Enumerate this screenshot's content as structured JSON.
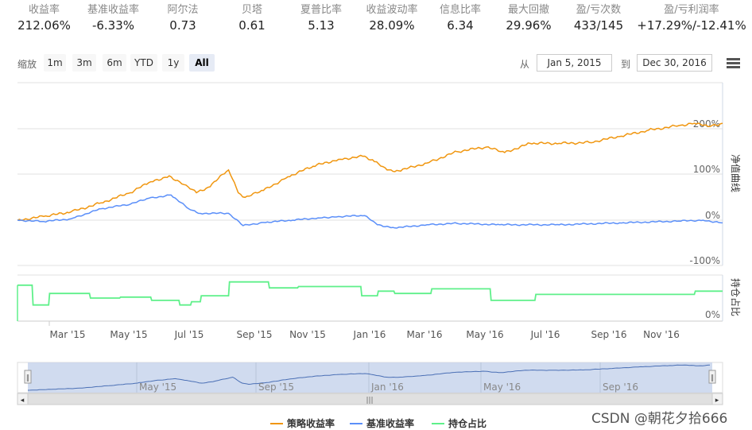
{
  "stats": [
    {
      "label": "收益率",
      "value": "212.06%"
    },
    {
      "label": "基准收益率",
      "value": "-6.33%"
    },
    {
      "label": "阿尔法",
      "value": "0.73"
    },
    {
      "label": "贝塔",
      "value": "0.61"
    },
    {
      "label": "夏普比率",
      "value": "5.13"
    },
    {
      "label": "收益波动率",
      "value": "28.09%"
    },
    {
      "label": "信息比率",
      "value": "6.34"
    },
    {
      "label": "最大回撤",
      "value": "29.96%"
    },
    {
      "label": "盈/亏次数",
      "value": "433/145"
    },
    {
      "label": "盈/亏利润率",
      "value": "+17.29%/-12.41%"
    }
  ],
  "range_selector": {
    "zoom_label": "缩放",
    "buttons": [
      "1m",
      "3m",
      "6m",
      "YTD",
      "1y",
      "All"
    ],
    "active": "All",
    "from_label": "从",
    "from_value": "Jan 5, 2015",
    "to_label": "到",
    "to_value": "Dec 30, 2016"
  },
  "chart_data": [
    {
      "type": "line",
      "ylabel": "净值曲线",
      "yticks": [
        "200%",
        "100%",
        "0%",
        "-100%"
      ],
      "ylim": [
        -100,
        250
      ],
      "x_range": [
        "2015-01-05",
        "2016-12-30"
      ],
      "series": [
        {
          "name": "策略收益率",
          "color": "#f0960f",
          "x": [
            "2015-01-05",
            "2015-02-01",
            "2015-03-01",
            "2015-04-01",
            "2015-05-01",
            "2015-05-20",
            "2015-06-10",
            "2015-06-25",
            "2015-07-08",
            "2015-07-20",
            "2015-08-10",
            "2015-08-20",
            "2015-08-27",
            "2015-09-15",
            "2015-10-10",
            "2015-11-05",
            "2015-12-01",
            "2015-12-28",
            "2016-01-07",
            "2016-01-20",
            "2016-02-01",
            "2016-03-01",
            "2016-04-01",
            "2016-05-01",
            "2016-05-20",
            "2016-06-15",
            "2016-07-15",
            "2016-08-15",
            "2016-09-15",
            "2016-10-15",
            "2016-11-15",
            "2016-12-01",
            "2016-12-15",
            "2016-12-30"
          ],
          "values": [
            0,
            8,
            18,
            38,
            60,
            82,
            97,
            78,
            60,
            72,
            110,
            60,
            50,
            65,
            95,
            118,
            133,
            140,
            128,
            110,
            108,
            125,
            150,
            160,
            148,
            168,
            168,
            170,
            183,
            197,
            207,
            212,
            205,
            212
          ]
        },
        {
          "name": "基准收益率",
          "color": "#5b8ff9",
          "x": [
            "2015-01-05",
            "2015-02-01",
            "2015-03-01",
            "2015-04-01",
            "2015-05-01",
            "2015-05-20",
            "2015-06-12",
            "2015-06-30",
            "2015-07-10",
            "2015-08-10",
            "2015-08-25",
            "2015-09-15",
            "2015-10-15",
            "2015-11-10",
            "2015-12-01",
            "2015-12-28",
            "2016-01-10",
            "2016-01-28",
            "2016-03-01",
            "2016-04-01",
            "2016-05-15",
            "2016-07-15",
            "2016-09-15",
            "2016-11-15",
            "2016-12-10",
            "2016-12-30"
          ],
          "values": [
            0,
            -3,
            3,
            25,
            35,
            48,
            55,
            25,
            15,
            15,
            -12,
            -5,
            0,
            5,
            8,
            10,
            -10,
            -17,
            -10,
            -7,
            -10,
            -10,
            -6,
            -2,
            0,
            -6
          ]
        }
      ]
    },
    {
      "type": "area",
      "ylabel": "持仓占比",
      "yticks": [
        "0%"
      ],
      "ylim": [
        0,
        100
      ],
      "x_range": [
        "2015-01-05",
        "2016-12-30"
      ],
      "series": [
        {
          "name": "持仓占比",
          "color": "#5ff08a",
          "x": [
            "2015-01-05",
            "2015-01-20",
            "2015-01-21",
            "2015-02-06",
            "2015-02-07",
            "2015-03-20",
            "2015-03-21",
            "2015-04-20",
            "2015-04-21",
            "2015-05-22",
            "2015-05-23",
            "2015-06-20",
            "2015-06-21",
            "2015-07-02",
            "2015-07-03",
            "2015-07-12",
            "2015-07-13",
            "2015-08-10",
            "2015-08-11",
            "2015-09-20",
            "2015-09-21",
            "2015-10-20",
            "2015-10-21",
            "2015-12-24",
            "2015-12-25",
            "2016-01-10",
            "2016-01-11",
            "2016-01-27",
            "2016-01-28",
            "2016-03-05",
            "2016-03-06",
            "2016-05-05",
            "2016-05-06",
            "2016-06-20",
            "2016-06-21",
            "2016-12-01",
            "2016-12-02",
            "2016-12-30"
          ],
          "values": [
            78,
            78,
            35,
            35,
            60,
            60,
            50,
            50,
            52,
            52,
            45,
            45,
            35,
            35,
            42,
            42,
            55,
            55,
            85,
            85,
            72,
            72,
            75,
            75,
            55,
            55,
            65,
            65,
            60,
            60,
            70,
            70,
            45,
            45,
            58,
            58,
            65,
            65
          ]
        }
      ]
    }
  ],
  "x_axis_ticks": [
    "Mar '15",
    "May '15",
    "Jul '15",
    "Sep '15",
    "Nov '15",
    "Jan '16",
    "Mar '16",
    "May '16",
    "Jul '16",
    "Sep '16",
    "Nov '16"
  ],
  "navigator": {
    "ticks": [
      "May '15",
      "Sep '15",
      "Jan '16",
      "May '16",
      "Sep '16"
    ],
    "handle_left": "‖",
    "handle_right": "‖",
    "scroll_left": "◂",
    "scroll_right": "▸",
    "scroll_grip": "|||"
  },
  "legend": [
    "策略收益率",
    "基准收益率",
    "持仓占比"
  ],
  "watermark": "CSDN @朝花夕拾666"
}
